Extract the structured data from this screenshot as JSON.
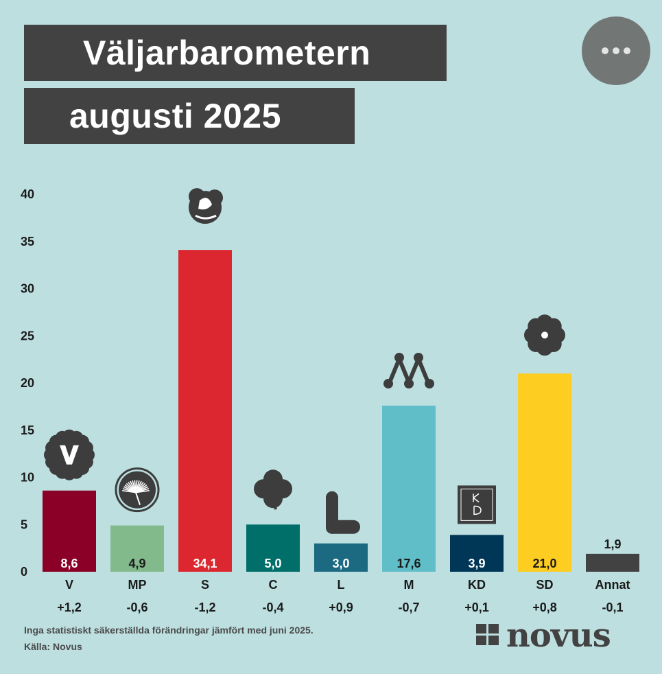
{
  "title_line1": "Väljarbarometern",
  "title_line2": "augusti 2025",
  "menu": {
    "more_icon": "more-horizontal-icon"
  },
  "chart_data": {
    "type": "bar",
    "categories": [
      "V",
      "MP",
      "S",
      "C",
      "L",
      "M",
      "KD",
      "SD",
      "Annat"
    ],
    "values": [
      8.6,
      4.9,
      34.1,
      5.0,
      3.0,
      17.6,
      3.9,
      21.0,
      1.9
    ],
    "value_labels": [
      "8,6",
      "4,9",
      "34,1",
      "5,0",
      "3,0",
      "17,6",
      "3,9",
      "21,0",
      "1,9"
    ],
    "changes": [
      "+1,2",
      "-0,6",
      "-1,2",
      "-0,4",
      "+0,9",
      "-0,7",
      "+0,1",
      "+0,8",
      "-0,1"
    ],
    "colors": [
      "#8b0026",
      "#82ba8c",
      "#dc2730",
      "#006e69",
      "#1c6a82",
      "#60bec9",
      "#003756",
      "#fdcd21",
      "#424242"
    ],
    "value_label_colors": [
      "#ffffff",
      "#1a1a1a",
      "#ffffff",
      "#ffffff",
      "#ffffff",
      "#1a1a1a",
      "#ffffff",
      "#1a1a1a",
      "#1a1a1a"
    ],
    "party_icons": [
      "v-party-logo-icon",
      "mp-dandelion-logo-icon",
      "s-rose-logo-icon",
      "c-clover-logo-icon",
      "l-letter-logo-icon",
      "m-logo-icon",
      "kd-logo-icon",
      "sd-flower-logo-icon",
      ""
    ],
    "yticks": [
      0,
      5,
      10,
      15,
      20,
      25,
      30,
      35,
      40
    ],
    "ylim": [
      0,
      40
    ],
    "grid": false,
    "legend": "none",
    "xlabel": "",
    "ylabel": ""
  },
  "footnote": "Inga statistiskt säkerställda förändringar jämfört med juni 2025.",
  "source": "Källa: Novus",
  "brand": {
    "name": "novus",
    "logo_icon": "novus-cross-logo-icon"
  }
}
